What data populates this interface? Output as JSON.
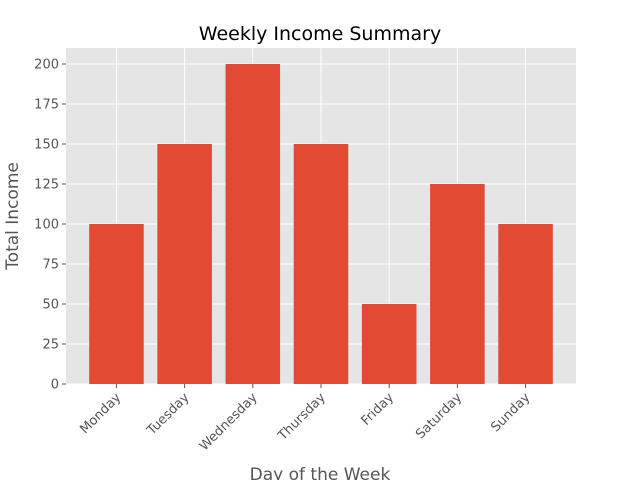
{
  "chart_data": {
    "type": "bar",
    "title": "Weekly Income Summary",
    "xlabel": "Day of the Week",
    "ylabel": "Total Income",
    "categories": [
      "Monday",
      "Tuesday",
      "Wednesday",
      "Thursday",
      "Friday",
      "Saturday",
      "Sunday"
    ],
    "values": [
      100,
      150,
      200,
      150,
      50,
      125,
      100
    ],
    "ylim": [
      0,
      210
    ],
    "yticks": [
      0,
      25,
      50,
      75,
      100,
      125,
      150,
      175,
      200
    ],
    "grid": true,
    "colors": {
      "bar": "#E24A33",
      "plot_background": "#E5E5E5",
      "grid": "#FFFFFF",
      "text": "#555555",
      "title": "#000000"
    }
  }
}
